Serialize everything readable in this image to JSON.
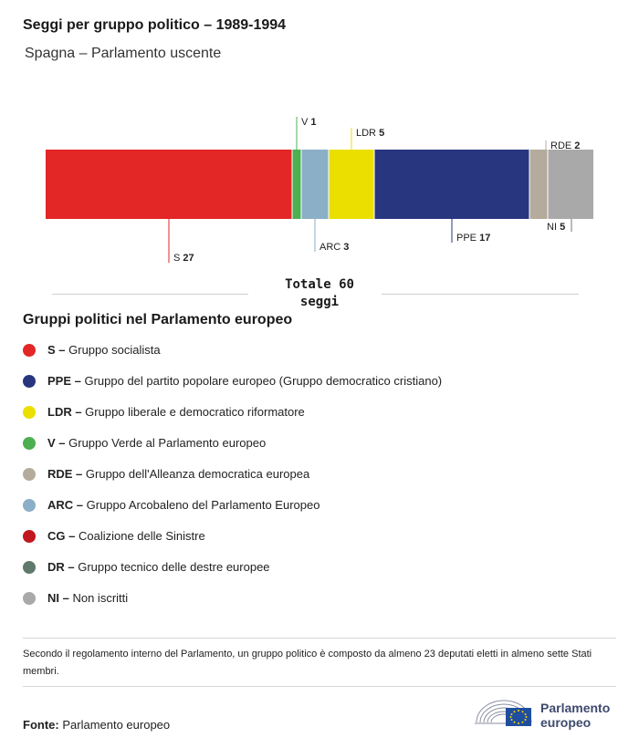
{
  "title": "Seggi per gruppo politico – 1989-1994",
  "subtitle": "Spagna – Parlamento uscente",
  "chart_data": {
    "type": "bar",
    "orientation": "horizontal-stacked",
    "title": "Seggi per gruppo politico – 1989-1994",
    "subtitle": "Spagna – Parlamento uscente",
    "total": 60,
    "segments": [
      {
        "code": "S",
        "value": 27,
        "color": "#e32626",
        "label_side": "bottom"
      },
      {
        "code": "V",
        "value": 1,
        "color": "#4caf50",
        "label_side": "top"
      },
      {
        "code": "ARC",
        "value": 3,
        "color": "#8aafc6",
        "label_side": "bottom"
      },
      {
        "code": "LDR",
        "value": 5,
        "color": "#ebdf00",
        "label_side": "top"
      },
      {
        "code": "PPE",
        "value": 17,
        "color": "#283680",
        "label_side": "bottom"
      },
      {
        "code": "RDE",
        "value": 2,
        "color": "#b4ab9c",
        "label_side": "top"
      },
      {
        "code": "NI",
        "value": 5,
        "color": "#a9a9a9",
        "label_side": "bottom"
      }
    ]
  },
  "total_text": "Totale 60",
  "total_unit": "seggi",
  "legend_title": "Gruppi politici nel Parlamento europeo",
  "legend": [
    {
      "abbr": "S –",
      "name": "Gruppo socialista",
      "color": "#e32626"
    },
    {
      "abbr": "PPE –",
      "name": "Gruppo del partito popolare europeo (Gruppo democratico cristiano)",
      "color": "#283680"
    },
    {
      "abbr": "LDR –",
      "name": "Gruppo liberale e democratico riformatore",
      "color": "#ebdf00"
    },
    {
      "abbr": "V –",
      "name": "Gruppo Verde al Parlamento europeo",
      "color": "#4caf50"
    },
    {
      "abbr": "RDE –",
      "name": "Gruppo dell'Alleanza democratica europea",
      "color": "#b4ab9c"
    },
    {
      "abbr": "ARC –",
      "name": "Gruppo Arcobaleno del Parlamento Europeo",
      "color": "#8aafc6"
    },
    {
      "abbr": "CG –",
      "name": "Coalizione delle Sinistre",
      "color": "#c0181e"
    },
    {
      "abbr": "DR –",
      "name": "Gruppo tecnico delle destre europee",
      "color": "#5f7a6a"
    },
    {
      "abbr": "NI –",
      "name": "Non iscritti",
      "color": "#a9a9a9"
    }
  ],
  "note": "Secondo il regolamento interno del Parlamento, un gruppo politico è composto da almeno 23 deputati eletti in almeno sette Stati membri.",
  "source_label": "Fonte:",
  "source_value": "Parlamento europeo",
  "logo": {
    "line1": "Parlamento",
    "line2": "europeo",
    "icon": "european-parliament-logo-icon",
    "flag_color": "#1f4e9e"
  }
}
